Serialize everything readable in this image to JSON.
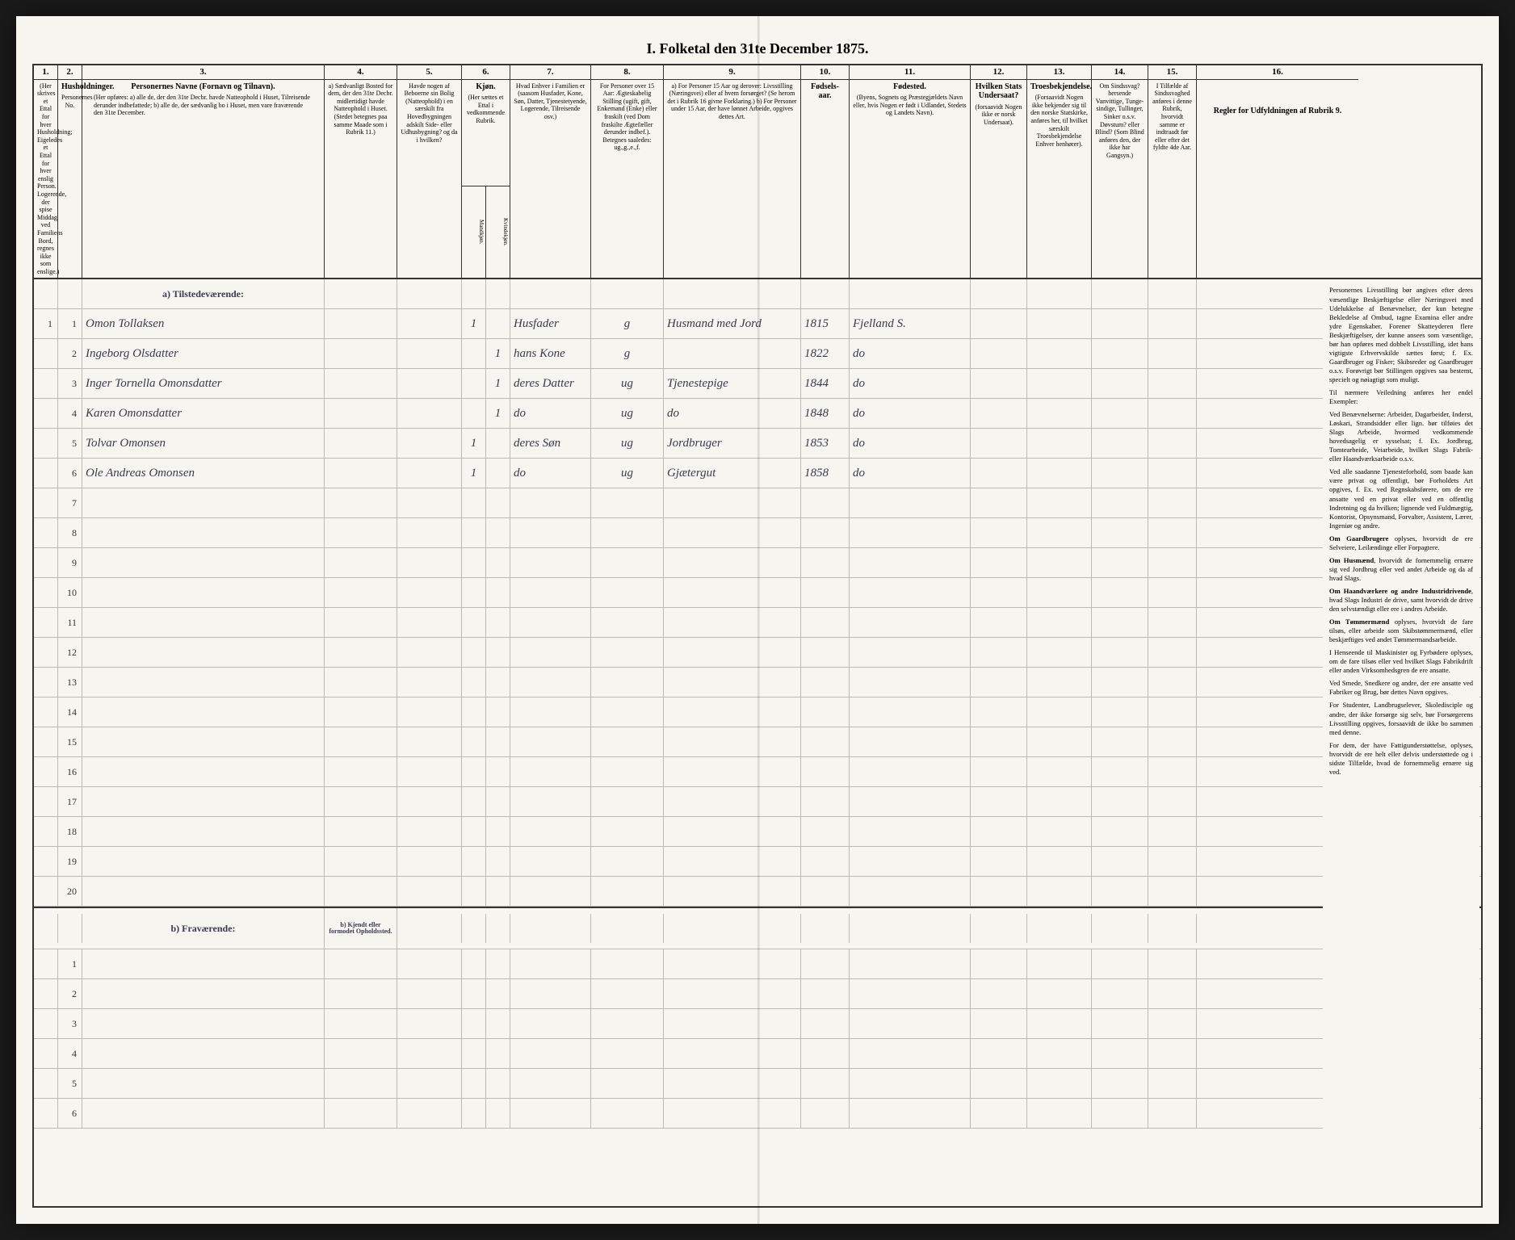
{
  "title": "I. Folketal den 31te December 1875.",
  "columns": {
    "1": {
      "num": "1.",
      "head": "",
      "text": "(Her skrives et Ettal for hver Husholdning; Eigeledes et Ettal for hver enslig Person. Logerende, der spise Middag ved Familiens Bord, regnes ikke som enslige.)"
    },
    "2": {
      "num": "2.",
      "head": "Husholdninger.",
      "text": "Personernes No."
    },
    "3": {
      "num": "3.",
      "head": "Personernes Navne (Fornavn og Tilnavn).",
      "text": "(Her opføres: a) alle de, der den 31te Decbr. havde Natteophold i Huset, Tilreisende derunder indbefattede; b) alle de, der sædvanlig bo i Huset, men vare fraværende den 31te December."
    },
    "4": {
      "num": "4.",
      "head": "",
      "text": "a) Sædvanligt Bosted for dem, der den 31te Decbr. midlertidigt havde Natteophold i Huset. (Stedet betegnes paa samme Maade som i Rubrik 11.)"
    },
    "5": {
      "num": "5.",
      "head": "",
      "text": "Havde nogen af Beboerne sin Bolig (Natteophold) i en særskilt fra Hovedbygningen adskilt Side- eller Udhusbygning? og da i hvilken?"
    },
    "6": {
      "num": "6.",
      "head": "Kjøn.",
      "text": "(Her sættes et Ettal i vedkommende Rubrik."
    },
    "6a": "Mandkjøn.",
    "6b": "Kvindekjøn.",
    "7": {
      "num": "7.",
      "head": "",
      "text": "Hvad Enhver i Familien er (saasom Husfader, Kone, Søn, Datter, Tjenestetyende, Logerende, Tilreisende osv.)"
    },
    "8": {
      "num": "8.",
      "head": "",
      "text": "For Personer over 15 Aar: Ægteskabelig Stilling (ugift, gift, Enkemand (Enke) eller fraskilt (ved Dom fraskilte Ægtefæller derunder indbef.). Betegnes saaledes: ug.,g.,e.,f."
    },
    "9": {
      "num": "9.",
      "head": "",
      "text": "a) For Personer 15 Aar og derover: Livsstilling (Næringsvei) eller af hvem forsørget? (Se herom det i Rubrik 16 givne Forklaring.) b) For Personer under 15 Aar, der have lønnet Arbeide, opgives dettes Art."
    },
    "10": {
      "num": "10.",
      "head": "Fødsels-aar.",
      "text": ""
    },
    "11": {
      "num": "11.",
      "head": "Fødested.",
      "text": "(Byens, Sognets og Præstegjældets Navn eller, hvis Nogen er født i Udlandet, Stedets og Landets Navn)."
    },
    "12": {
      "num": "12.",
      "head": "Hvilken Stats Undersaat?",
      "text": "(forsaavidt Nogen ikke er norsk Undersaat)."
    },
    "13": {
      "num": "13.",
      "head": "Troesbekjendelse.",
      "text": "(Forsaavidt Nogen ikke bekjender sig til den norske Statskirke, anføres her, til hvilket særskilt Troesbekjendelse Enhver henhører)."
    },
    "14": {
      "num": "14.",
      "head": "",
      "text": "Om Sindssvag? hersende Vanvittige, Tunge-sindige, Tullinger, Sinker o.s.v. Døvstum? eller Blind? (Som Blind anføres den, der ikke har Gangsyn.)"
    },
    "15": {
      "num": "15.",
      "head": "",
      "text": "I Tilfælde af Sindssvaghed anføres i denne Rubrik, hvorvidt samme er indtraadt før eller efter det fyldte 4de Aar."
    },
    "16": {
      "num": "16.",
      "head": "Regler for Udfyldningen af Rubrik 9.",
      "text": ""
    }
  },
  "section_a": "a) Tilstedeværende:",
  "section_b": "b) Fraværende:",
  "section_b_col4": "b) Kjendt eller formodet Opholdssted.",
  "rows_a": [
    {
      "n1": "1",
      "n2": "1",
      "name": "Omon Tollaksen",
      "c5": "",
      "c6": "1",
      "c6b": "",
      "c7": "Husfader",
      "c8": "g",
      "c9": "Husmand med Jord",
      "c10": "1815",
      "c11": "Fjelland S."
    },
    {
      "n1": "",
      "n2": "2",
      "name": "Ingeborg Olsdatter",
      "c5": "",
      "c6": "",
      "c6b": "1",
      "c7": "hans Kone",
      "c8": "g",
      "c9": "",
      "c10": "1822",
      "c11": "do"
    },
    {
      "n1": "",
      "n2": "3",
      "name": "Inger Tornella Omonsdatter",
      "c5": "",
      "c6": "",
      "c6b": "1",
      "c7": "deres Datter",
      "c8": "ug",
      "c9": "Tjenestepige",
      "c10": "1844",
      "c11": "do"
    },
    {
      "n1": "",
      "n2": "4",
      "name": "Karen Omonsdatter",
      "c5": "",
      "c6": "",
      "c6b": "1",
      "c7": "do",
      "c8": "ug",
      "c9": "do",
      "c10": "1848",
      "c11": "do"
    },
    {
      "n1": "",
      "n2": "5",
      "name": "Tolvar Omonsen",
      "c5": "",
      "c6": "1",
      "c6b": "",
      "c7": "deres Søn",
      "c8": "ug",
      "c9": "Jordbruger",
      "c10": "1853",
      "c11": "do"
    },
    {
      "n1": "",
      "n2": "6",
      "name": "Ole Andreas Omonsen",
      "c5": "",
      "c6": "1",
      "c6b": "",
      "c7": "do",
      "c8": "ug",
      "c9": "Gjætergut",
      "c10": "1858",
      "c11": "do"
    }
  ],
  "empty_a_rows": [
    "7",
    "8",
    "9",
    "10",
    "11",
    "12",
    "13",
    "14",
    "15",
    "16",
    "17",
    "18",
    "19",
    "20"
  ],
  "empty_b_rows": [
    "1",
    "2",
    "3",
    "4",
    "5",
    "6"
  ],
  "instructions": [
    {
      "t": "Personernes Livsstilling bør angives efter deres væsentlige Beskjæftigelse eller Næringsvei med Udelukkelse af Benævnelser, der kun betegne Bekledelse af Ombud, tagne Examina eller andre ydre Egenskaber. Forener Skatteyderen flere Beskjæftigelser, der kunne ansees som væsentlige, bør han opføres med dobbelt Livsstilling, idet hans vigtigste Erhvervskilde sættes først; f. Ex. Gaardbruger og Fisker; Skibsreder og Gaardbruger o.s.v. Forøvrigt bør Stillingen opgives saa bestemt, specielt og nøiagtigt som muligt."
    },
    {
      "t": "Til nærmere Veiledning anføres her endel Exempler:"
    },
    {
      "t": "Ved Benævnelserne: Arbeider, Dagarbeider, Inderst, Løskari, Strandsidder eller lign. bør tilføies det Slags Arbeide, hvormed vedkommende hovedsagelig er sysselsat; f. Ex. Jordbrug, Tomtearbeide, Veiarbeide, hvilket Slags Fabrik- eller Haandværksarbeide o.s.v."
    },
    {
      "t": "Ved alle saadanne Tjenesteforhold, som baade kan være privat og offentligt, bør Forholdets Art opgives, f. Ex. ved Regnskabsførere, om de ere ansatte ved en privat eller ved en offentlig Indretning og da hvilken; lignende ved Fuldmægtig, Kontorist, Opsynsmand, Forvalter, Assistent, Lærer, Ingeniør og andre."
    },
    {
      "b": "Om Gaardbrugere",
      "t": " oplyses, hvorvidt de ere Selveiere, Leilændinge eller Forpagtere."
    },
    {
      "b": "Om Husmænd",
      "t": ", hvorvidt de fornemmelig ernære sig ved Jordbrug eller ved andet Arbeide og da af hvad Slags."
    },
    {
      "b": "Om Haandværkere og andre Industridrivende",
      "t": ", hvad Slags Industri de drive, samt hvorvidt de drive den selvstændigt eller ere i andres Arbeide."
    },
    {
      "b": "Om Tømmermænd",
      "t": " oplyses, hvorvidt de fare tilsøs, eller arbeide som Skibstømmermænd, eller beskjæftiges ved andet Tømmermandsarbeide."
    },
    {
      "t": "I Henseende til Maskinister og Fyrbødere oplyses, om de fare tilsøs eller ved hvilket Slags Fabrikdrift eller anden Virksomhedsgren de ere ansatte."
    },
    {
      "t": "Ved Smede, Snedkere og andre, der ere ansatte ved Fabriker og Brug, bør dettes Navn opgives."
    },
    {
      "t": "For Studenter, Landbrugselever, Skoledisciple og andre, der ikke forsørge sig selv, bør Forsørgerens Livsstilling opgives, forsaavidt de ikke bo sammen med denne."
    },
    {
      "t": "For dem, der have Fattigunderstøttelse, oplyses, hvorvidt de ere helt eller delvis understøttede og i sidste Tilfælde, hvad de fornemmelig ernære sig ved."
    }
  ]
}
